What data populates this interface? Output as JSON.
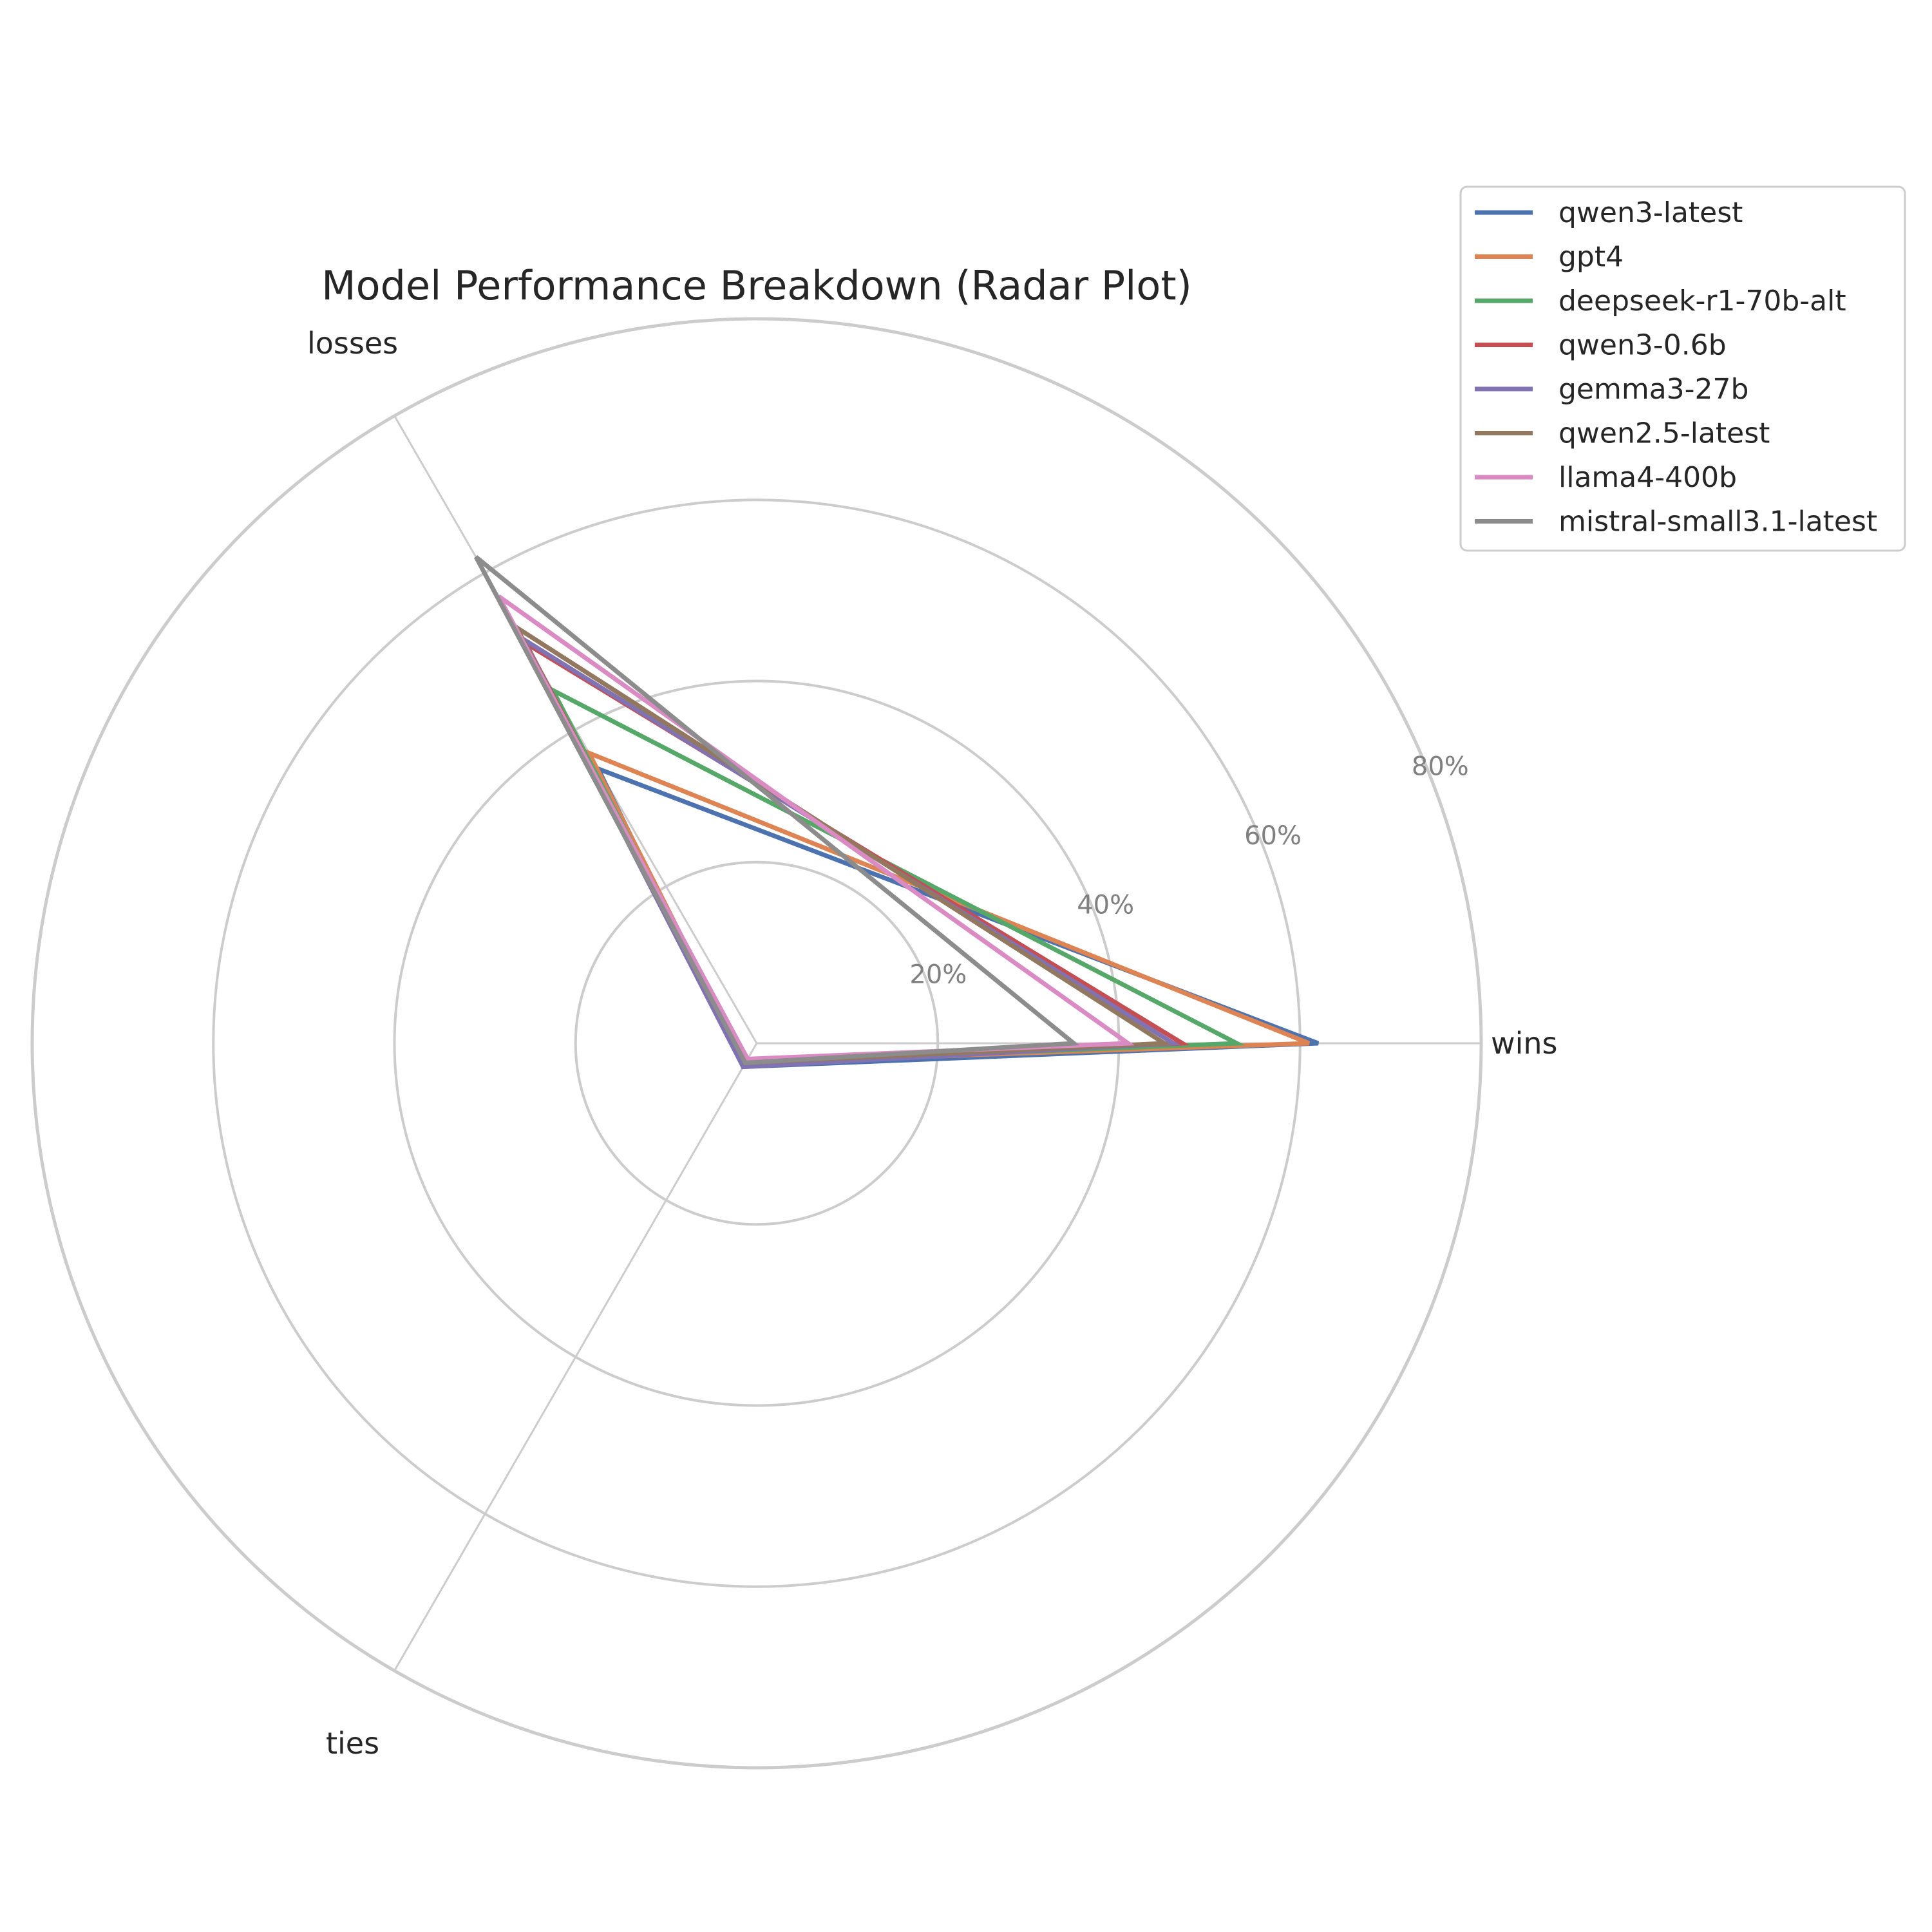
{
  "chart_data": {
    "type": "radar",
    "title": "Model Performance Breakdown (Radar Plot)",
    "axes": [
      "wins",
      "losses",
      "ties"
    ],
    "rlim": [
      0,
      80
    ],
    "r_ticks": [
      20,
      40,
      60,
      80
    ],
    "r_tick_labels": [
      "20%",
      "40%",
      "60%",
      "80%"
    ],
    "grid": true,
    "legend_position": "top-right",
    "series": [
      {
        "name": "qwen3-latest",
        "color": "#4c72b0",
        "values": [
          62.0,
          35.0,
          3.0
        ]
      },
      {
        "name": "gpt4",
        "color": "#dd8452",
        "values": [
          61.0,
          37.0,
          2.5
        ]
      },
      {
        "name": "deepseek-r1-70b-alt",
        "color": "#55a868",
        "values": [
          53.0,
          45.0,
          2.5
        ]
      },
      {
        "name": "qwen3-0.6b",
        "color": "#c44e52",
        "values": [
          47.0,
          51.0,
          2.5
        ]
      },
      {
        "name": "gemma3-27b",
        "color": "#8172b3",
        "values": [
          46.0,
          51.5,
          3.0
        ]
      },
      {
        "name": "qwen2.5-latest",
        "color": "#937860",
        "values": [
          45.0,
          53.0,
          2.5
        ]
      },
      {
        "name": "llama4-400b",
        "color": "#da8bc3",
        "values": [
          41.0,
          57.0,
          2.0
        ]
      },
      {
        "name": "mistral-small3.1-latest",
        "color": "#8c8c8c",
        "values": [
          35.0,
          62.0,
          2.5
        ]
      }
    ]
  }
}
